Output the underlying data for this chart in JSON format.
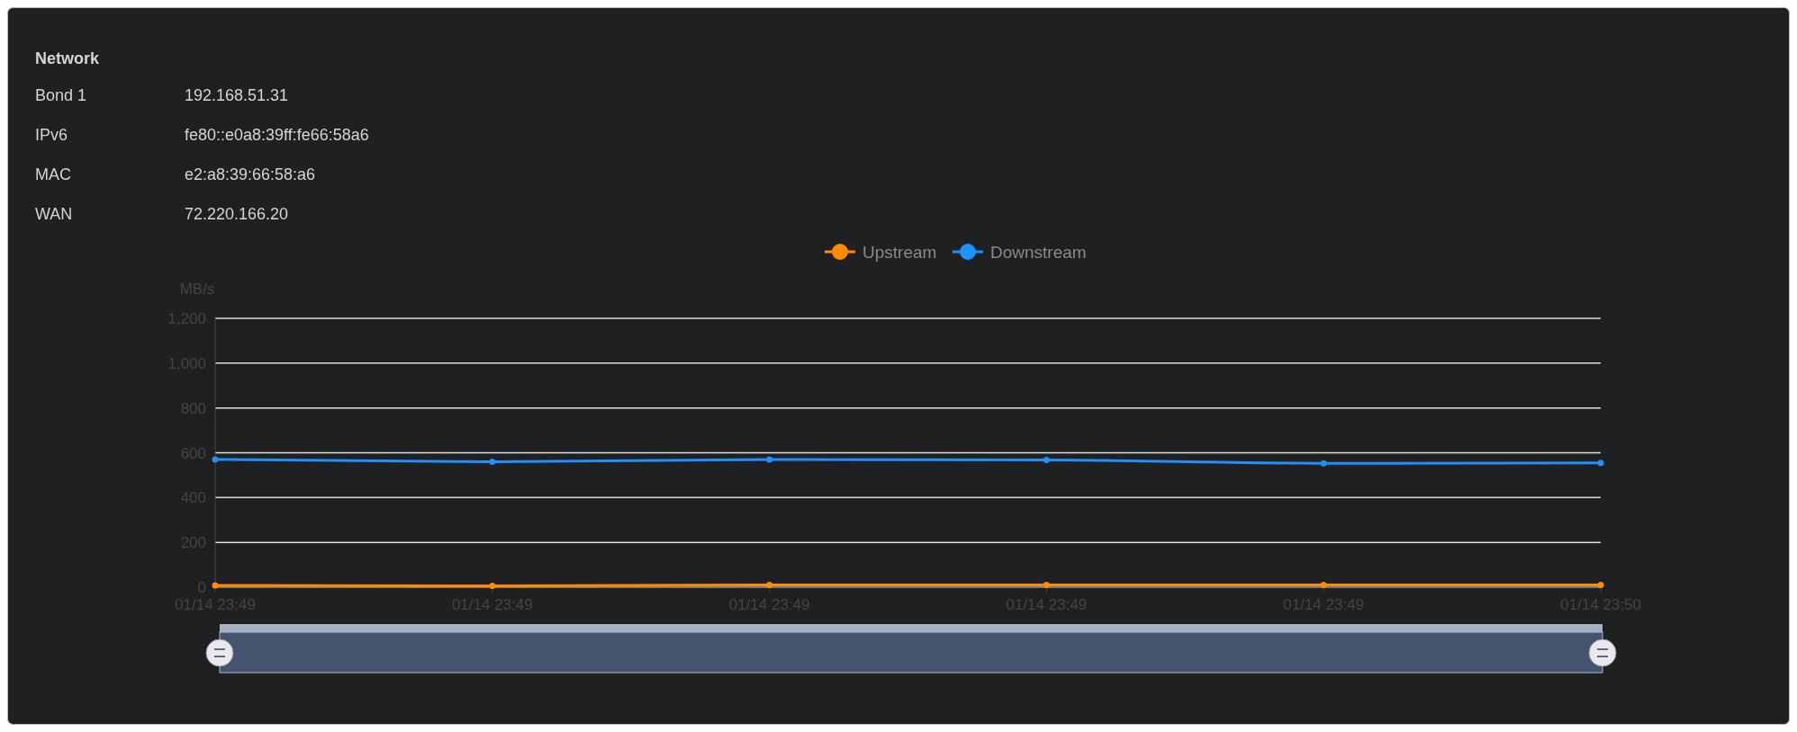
{
  "chart_data": {
    "type": "line",
    "title": "Network",
    "annotations": [
      "Bond 1",
      "192.168.51.31",
      "IPv6",
      "fe80::e0a8:39ff:fe66:58a6",
      "MAC",
      "e2:a8:39:66:58:a6",
      "WAN",
      "72.220.166.20"
    ],
    "ylabel": "MB/s",
    "categories": [
      "01/14 23:49",
      "01/14 23:49",
      "01/14 23:49",
      "01/14 23:49",
      "01/14 23:49",
      "01/14 23:50"
    ],
    "series": [
      {
        "name": "Upstream",
        "color": "#ff8c00",
        "values": [
          8,
          6,
          10,
          10,
          10,
          10
        ]
      },
      {
        "name": "Downstream",
        "color": "#1e90ff",
        "values": [
          570,
          560,
          570,
          568,
          553,
          555
        ]
      }
    ],
    "ylim": [
      0,
      1200
    ],
    "yticks": [
      0,
      {
        "value": 200,
        "label": "200"
      },
      400,
      600,
      800,
      {
        "value": 1000,
        "label": "1,000"
      },
      {
        "value": 1200,
        "label": "1,200"
      }
    ],
    "grid": "y",
    "legend": "top",
    "marker": "circle"
  }
}
